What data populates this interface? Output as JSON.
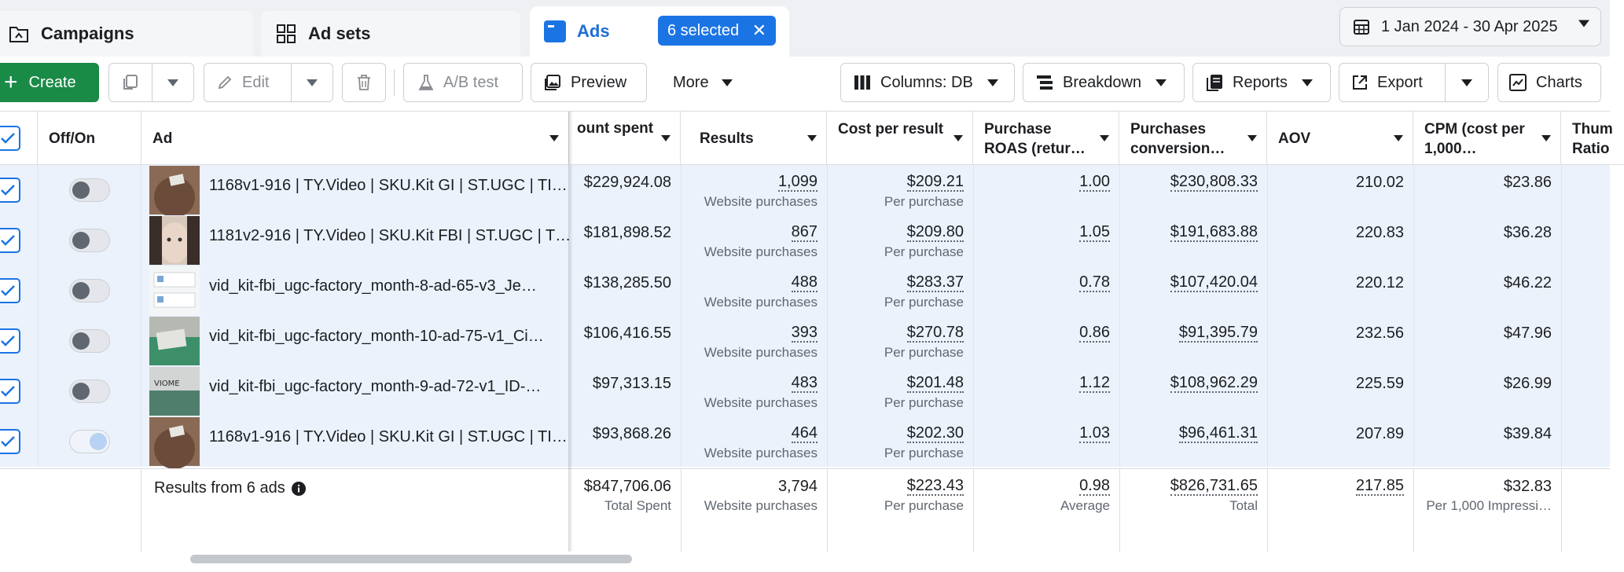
{
  "tabs": {
    "campaigns": "Campaigns",
    "adsets": "Ad sets",
    "ads": "Ads",
    "selected_badge": "6 selected",
    "date_range": "1 Jan 2024 - 30 Apr 2025"
  },
  "toolbar": {
    "create": "Create",
    "edit": "Edit",
    "ab_test": "A/B test",
    "preview": "Preview",
    "more": "More",
    "columns": "Columns: DB",
    "breakdown": "Breakdown",
    "reports": "Reports",
    "export": "Export",
    "charts": "Charts"
  },
  "columns": {
    "off_on": "Off/On",
    "ad": "Ad",
    "amount_spent": "ount spent",
    "results": "Results",
    "cost_per_result": "Cost per result",
    "purchase_roas": "Purchase ROAS (retur…",
    "purchases_conv": "Purchases conversion…",
    "aov": "AOV",
    "cpm": "CPM (cost per 1,000…",
    "thumb": "Thum Ratio"
  },
  "rows": [
    {
      "name": "1168v1-916 | TY.Video | SKU.Kit GI | ST.UGC | TI…",
      "spent": "$229,924.08",
      "results": "1,099",
      "results_sub": "Website purchases",
      "cpr": "$209.21",
      "cpr_sub": "Per purchase",
      "roas": "1.00",
      "conv": "$230,808.33",
      "aov": "210.02",
      "cpm": "$23.86",
      "on": false
    },
    {
      "name": "1181v2-916 | TY.Video | SKU.Kit FBI | ST.UGC | T…",
      "spent": "$181,898.52",
      "results": "867",
      "results_sub": "Website purchases",
      "cpr": "$209.80",
      "cpr_sub": "Per purchase",
      "roas": "1.05",
      "conv": "$191,683.88",
      "aov": "220.83",
      "cpm": "$36.28",
      "on": false
    },
    {
      "name": "vid_kit-fbi_ugc-factory_month-8-ad-65-v3_Je…",
      "spent": "$138,285.50",
      "results": "488",
      "results_sub": "Website purchases",
      "cpr": "$283.37",
      "cpr_sub": "Per purchase",
      "roas": "0.78",
      "conv": "$107,420.04",
      "aov": "220.12",
      "cpm": "$46.22",
      "on": false
    },
    {
      "name": "vid_kit-fbi_ugc-factory_month-10-ad-75-v1_Ci…",
      "spent": "$106,416.55",
      "results": "393",
      "results_sub": "Website purchases",
      "cpr": "$270.78",
      "cpr_sub": "Per purchase",
      "roas": "0.86",
      "conv": "$91,395.79",
      "aov": "232.56",
      "cpm": "$47.96",
      "on": false
    },
    {
      "name": "vid_kit-fbi_ugc-factory_month-9-ad-72-v1_ID-…",
      "spent": "$97,313.15",
      "results": "483",
      "results_sub": "Website purchases",
      "cpr": "$201.48",
      "cpr_sub": "Per purchase",
      "roas": "1.12",
      "conv": "$108,962.29",
      "aov": "225.59",
      "cpm": "$26.99",
      "on": false
    },
    {
      "name": "1168v1-916 | TY.Video | SKU.Kit GI | ST.UGC | TI…",
      "spent": "$93,868.26",
      "results": "464",
      "results_sub": "Website purchases",
      "cpr": "$202.30",
      "cpr_sub": "Per purchase",
      "roas": "1.03",
      "conv": "$96,461.31",
      "aov": "207.89",
      "cpm": "$39.84",
      "on": true
    }
  ],
  "footer": {
    "label": "Results from 6 ads",
    "spent": "$847,706.06",
    "spent_sub": "Total Spent",
    "results": "3,794",
    "results_sub": "Website purchases",
    "cpr": "$223.43",
    "cpr_sub": "Per purchase",
    "roas": "0.98",
    "roas_sub": "Average",
    "conv": "$826,731.65",
    "conv_sub": "Total",
    "aov": "217.85",
    "cpm": "$32.83",
    "cpm_sub": "Per 1,000 Impressi…"
  },
  "colors": {
    "accent": "#1b74e4",
    "create_green": "#1a8a47",
    "selected_row": "#ebf2fc"
  }
}
